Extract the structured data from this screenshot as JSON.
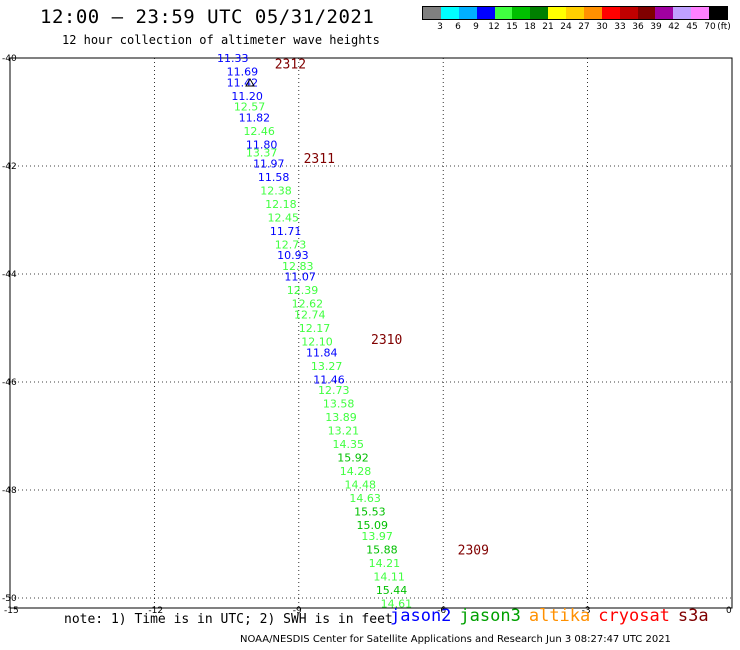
{
  "title": "12:00 – 23:59 UTC 05/31/2021",
  "subtitle": "12 hour collection of altimeter wave heights",
  "colorbar": {
    "unit": "(ft)",
    "colors": [
      "#808080",
      "#00ffff",
      "#00b0ff",
      "#0000ff",
      "#40ff40",
      "#00c000",
      "#008000",
      "#ffff00",
      "#ffd000",
      "#ff9000",
      "#ff0000",
      "#c00000",
      "#800000",
      "#a000a0",
      "#c0a0ff",
      "#ff80ff",
      "#000000"
    ],
    "labels": [
      "3",
      "6",
      "9",
      "12",
      "15",
      "18",
      "21",
      "24",
      "27",
      "30",
      "33",
      "36",
      "39",
      "42",
      "45",
      "70"
    ]
  },
  "chart_data": {
    "type": "scatter",
    "lon_ticks": [
      "-15",
      "-12",
      "-9",
      "-6",
      "-3",
      "0"
    ],
    "lat_ticks": [
      "-40",
      "-42",
      "-44",
      "-46",
      "-48",
      "-50"
    ],
    "xlim": [
      -15,
      0
    ],
    "ylim": [
      -50,
      -40
    ],
    "grid": true,
    "passes": [
      {
        "label": "2312",
        "lon": -9.5,
        "lat": -40.1,
        "color": "#800000"
      },
      {
        "label": "2311",
        "lon": -8.9,
        "lat": -41.85,
        "color": "#800000"
      },
      {
        "label": "2310",
        "lon": -7.5,
        "lat": -45.2,
        "color": "#800000"
      },
      {
        "label": "2309",
        "lon": -5.7,
        "lat": -49.1,
        "color": "#800000"
      }
    ],
    "points": [
      {
        "v": "11.33",
        "lon": -10.7,
        "lat": -40.0,
        "color": "#0000ff"
      },
      {
        "v": "11.69",
        "lon": -10.5,
        "lat": -40.25,
        "color": "#0000ff"
      },
      {
        "v": "11.42",
        "lon": -10.5,
        "lat": -40.45,
        "color": "#0000ff"
      },
      {
        "v": "11.20",
        "lon": -10.4,
        "lat": -40.7,
        "color": "#0000ff"
      },
      {
        "v": "12.57",
        "lon": -10.35,
        "lat": -40.9,
        "color": "#40ff40"
      },
      {
        "v": "11.82",
        "lon": -10.25,
        "lat": -41.1,
        "color": "#0000ff"
      },
      {
        "v": "12.46",
        "lon": -10.15,
        "lat": -41.35,
        "color": "#40ff40"
      },
      {
        "v": "11.80",
        "lon": -10.1,
        "lat": -41.6,
        "color": "#0000ff"
      },
      {
        "v": "13.37",
        "lon": -10.1,
        "lat": -41.75,
        "color": "#40ff40"
      },
      {
        "v": "11.97",
        "lon": -9.95,
        "lat": -41.95,
        "color": "#0000ff"
      },
      {
        "v": "11.58",
        "lon": -9.85,
        "lat": -42.2,
        "color": "#0000ff"
      },
      {
        "v": "12.38",
        "lon": -9.8,
        "lat": -42.45,
        "color": "#40ff40"
      },
      {
        "v": "12.18",
        "lon": -9.7,
        "lat": -42.7,
        "color": "#40ff40"
      },
      {
        "v": "12.45",
        "lon": -9.65,
        "lat": -42.95,
        "color": "#40ff40"
      },
      {
        "v": "11.71",
        "lon": -9.6,
        "lat": -43.2,
        "color": "#0000ff"
      },
      {
        "v": "12.73",
        "lon": -9.5,
        "lat": -43.45,
        "color": "#40ff40"
      },
      {
        "v": "10.93",
        "lon": -9.45,
        "lat": -43.65,
        "color": "#0000ff"
      },
      {
        "v": "12.83",
        "lon": -9.35,
        "lat": -43.85,
        "color": "#40ff40"
      },
      {
        "v": "11.07",
        "lon": -9.3,
        "lat": -44.05,
        "color": "#0000ff"
      },
      {
        "v": "12.39",
        "lon": -9.25,
        "lat": -44.3,
        "color": "#40ff40"
      },
      {
        "v": "12.62",
        "lon": -9.15,
        "lat": -44.55,
        "color": "#40ff40"
      },
      {
        "v": "12.74",
        "lon": -9.1,
        "lat": -44.75,
        "color": "#40ff40"
      },
      {
        "v": "12.17",
        "lon": -9.0,
        "lat": -45.0,
        "color": "#40ff40"
      },
      {
        "v": "12.10",
        "lon": -8.95,
        "lat": -45.25,
        "color": "#40ff40"
      },
      {
        "v": "11.84",
        "lon": -8.85,
        "lat": -45.45,
        "color": "#0000ff"
      },
      {
        "v": "13.27",
        "lon": -8.75,
        "lat": -45.7,
        "color": "#40ff40"
      },
      {
        "v": "11.46",
        "lon": -8.7,
        "lat": -45.95,
        "color": "#0000ff"
      },
      {
        "v": "12.73",
        "lon": -8.6,
        "lat": -46.15,
        "color": "#40ff40"
      },
      {
        "v": "13.58",
        "lon": -8.5,
        "lat": -46.4,
        "color": "#40ff40"
      },
      {
        "v": "13.89",
        "lon": -8.45,
        "lat": -46.65,
        "color": "#40ff40"
      },
      {
        "v": "13.21",
        "lon": -8.4,
        "lat": -46.9,
        "color": "#40ff40"
      },
      {
        "v": "14.35",
        "lon": -8.3,
        "lat": -47.15,
        "color": "#40ff40"
      },
      {
        "v": "15.92",
        "lon": -8.2,
        "lat": -47.4,
        "color": "#00c000"
      },
      {
        "v": "14.28",
        "lon": -8.15,
        "lat": -47.65,
        "color": "#40ff40"
      },
      {
        "v": "14.48",
        "lon": -8.05,
        "lat": -47.9,
        "color": "#40ff40"
      },
      {
        "v": "14.63",
        "lon": -7.95,
        "lat": -48.15,
        "color": "#40ff40"
      },
      {
        "v": "15.53",
        "lon": -7.85,
        "lat": -48.4,
        "color": "#00c000"
      },
      {
        "v": "15.09",
        "lon": -7.8,
        "lat": -48.65,
        "color": "#00c000"
      },
      {
        "v": "13.97",
        "lon": -7.7,
        "lat": -48.85,
        "color": "#40ff40"
      },
      {
        "v": "15.88",
        "lon": -7.6,
        "lat": -49.1,
        "color": "#00c000"
      },
      {
        "v": "14.21",
        "lon": -7.55,
        "lat": -49.35,
        "color": "#40ff40"
      },
      {
        "v": "14.11",
        "lon": -7.45,
        "lat": -49.6,
        "color": "#40ff40"
      },
      {
        "v": "15.44",
        "lon": -7.4,
        "lat": -49.85,
        "color": "#00c000"
      },
      {
        "v": "14.61",
        "lon": -7.3,
        "lat": -50.1,
        "color": "#40ff40"
      }
    ]
  },
  "note": "note: 1) Time is in UTC; 2) SWH is in feet",
  "legend": [
    {
      "name": "jason2",
      "color": "#0000ff"
    },
    {
      "name": "jason3",
      "color": "#00a000"
    },
    {
      "name": "altika",
      "color": "#ff9000"
    },
    {
      "name": "cryosat",
      "color": "#ff0000"
    },
    {
      "name": "s3a",
      "color": "#800000"
    }
  ],
  "credit": "NOAA/NESDIS Center for Satellite Applications and Research   Jun  3 08:27:47 UTC 2021"
}
